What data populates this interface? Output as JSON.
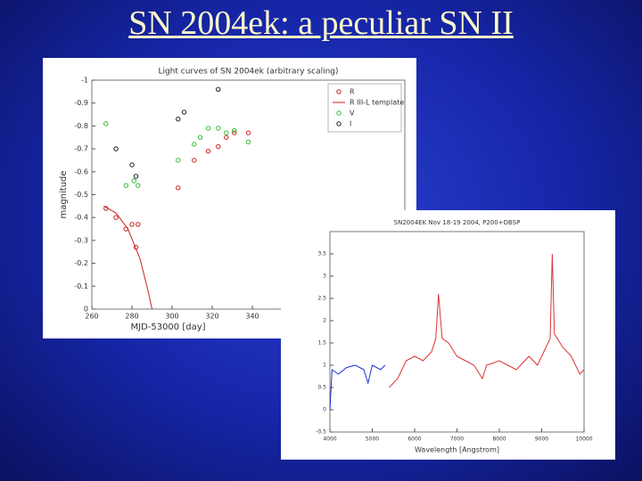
{
  "slide_title": "SN 2004ek: a peculiar SN II",
  "chart_data": [
    {
      "type": "scatter",
      "title": "Light curves of SN 2004ek (arbitrary scaling)",
      "xlabel": "MJD-53000 [day]",
      "ylabel": "magnitude",
      "xlim": [
        260,
        416
      ],
      "xticks": [
        260,
        280,
        300,
        320,
        340
      ],
      "ylim": [
        0,
        -1
      ],
      "yticks": [
        0,
        -0.1,
        -0.2,
        -0.3,
        -0.4,
        -0.5,
        -0.6,
        -0.7,
        -0.8,
        -0.9,
        -1
      ],
      "legend": "upper right",
      "series": [
        {
          "name": "R",
          "color": "#cc2222",
          "style": "markers",
          "x": [
            267,
            272,
            277,
            280,
            282,
            283,
            303,
            311,
            318,
            323,
            327,
            331,
            338
          ],
          "values": [
            -0.44,
            -0.4,
            -0.35,
            -0.37,
            -0.27,
            -0.37,
            -0.53,
            -0.65,
            -0.69,
            -0.71,
            -0.75,
            -0.77,
            -0.77
          ]
        },
        {
          "name": "R III-L template",
          "color": "#cc2222",
          "style": "line",
          "x": [
            266,
            272,
            278,
            284,
            288,
            290
          ],
          "values": [
            -0.45,
            -0.42,
            -0.35,
            -0.22,
            -0.08,
            0
          ]
        },
        {
          "name": "V",
          "color": "#33bb33",
          "style": "markers",
          "x": [
            267,
            272,
            277,
            281,
            283,
            303,
            311,
            314,
            318,
            323,
            327,
            331,
            338
          ],
          "values": [
            -0.81,
            -0.7,
            -0.54,
            -0.56,
            -0.54,
            -0.65,
            -0.72,
            -0.75,
            -0.79,
            -0.79,
            -0.77,
            -0.78,
            -0.73
          ]
        },
        {
          "name": "I",
          "color": "#222222",
          "style": "markers",
          "x": [
            272,
            280,
            282,
            303,
            306,
            323
          ],
          "values": [
            -0.7,
            -0.63,
            -0.58,
            -0.83,
            -0.86,
            -0.96
          ]
        }
      ]
    },
    {
      "type": "line",
      "title": "SN2004EK Nov 18-19 2004, P200+DBSP",
      "xlabel": "Wavelength [Angstrom]",
      "xlim": [
        4000,
        10000
      ],
      "xticks": [
        4000,
        5000,
        6000,
        7000,
        8000,
        9000,
        10000
      ],
      "ylim": [
        -0.5,
        4
      ],
      "yticks": [
        -0.5,
        0,
        0.5,
        1,
        1.5,
        2,
        2.5,
        3,
        3.5
      ],
      "series": [
        {
          "color": "#1a2fcc",
          "x": [
            4000,
            4050,
            4200,
            4400,
            4600,
            4800,
            4900,
            5000,
            5200,
            5300
          ],
          "values": [
            0,
            0.9,
            0.8,
            0.95,
            1,
            0.9,
            0.6,
            1,
            0.9,
            1
          ]
        },
        {
          "color": "#dd3333",
          "x": [
            5400,
            5600,
            5800,
            6000,
            6200,
            6400,
            6500,
            6563,
            6650,
            6800,
            7000,
            7200,
            7400,
            7600,
            7700,
            8000,
            8200,
            8400,
            8600,
            8700,
            8900,
            9100,
            9200,
            9250,
            9300,
            9500,
            9700,
            9900,
            10000
          ],
          "values": [
            0.5,
            0.7,
            1.1,
            1.2,
            1.1,
            1.3,
            1.6,
            2.6,
            1.6,
            1.5,
            1.2,
            1.1,
            1,
            0.7,
            1,
            1.1,
            1,
            0.9,
            1.1,
            1.2,
            1,
            1.4,
            1.6,
            3.5,
            1.7,
            1.4,
            1.2,
            0.8,
            0.9
          ]
        }
      ]
    }
  ]
}
